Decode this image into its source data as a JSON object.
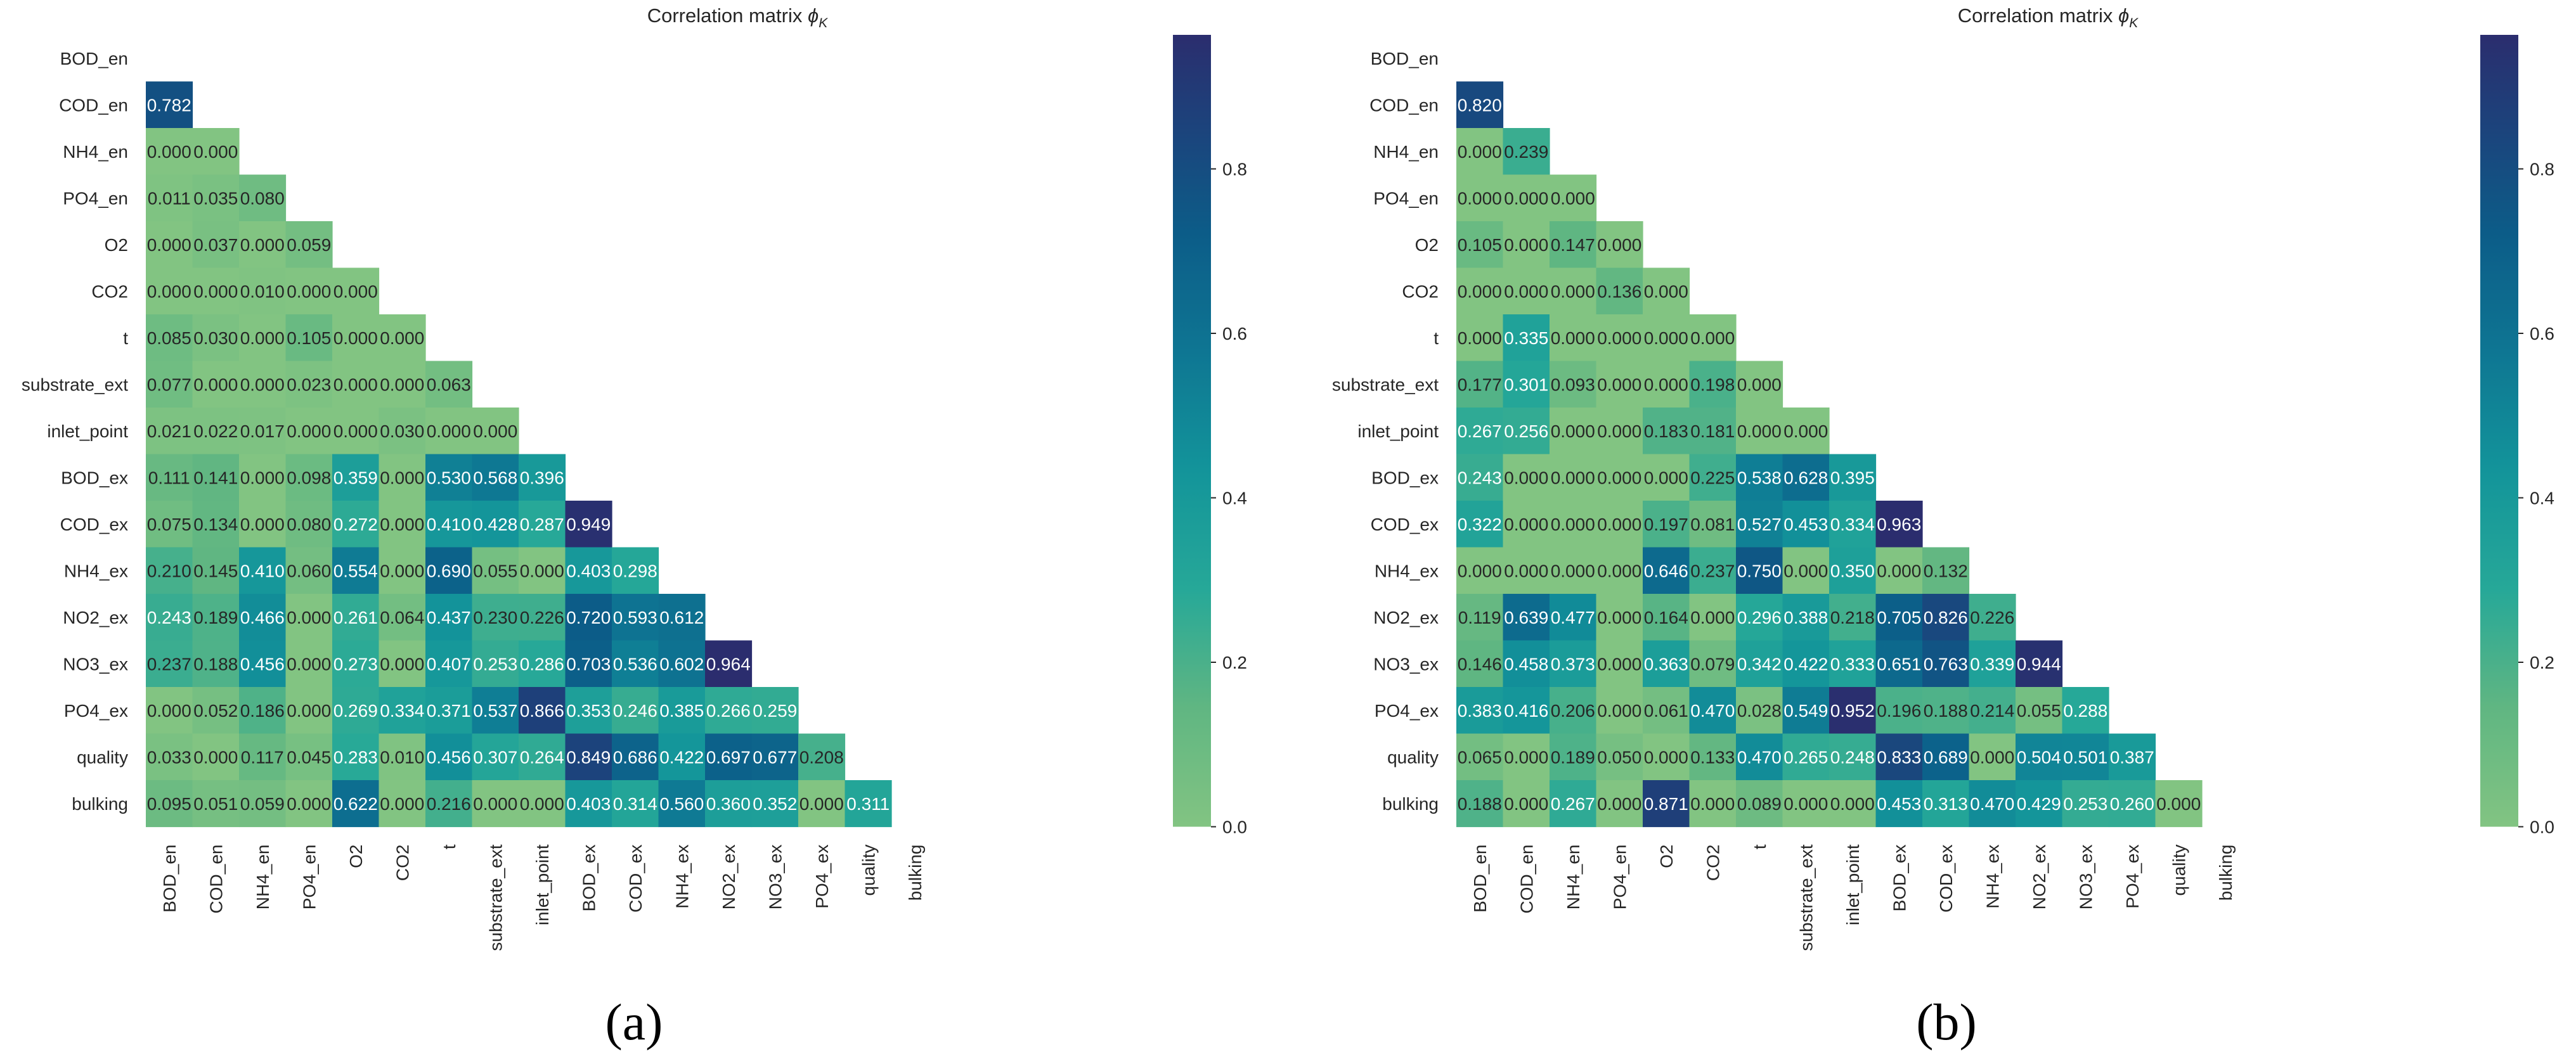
{
  "figure": {
    "panels": [
      {
        "label": "(a)"
      },
      {
        "label": "(b)"
      }
    ]
  },
  "chart_data": [
    {
      "type": "heatmap",
      "title": "Correlation matrix",
      "title_symbol": "ϕ",
      "title_subscript": "K",
      "mask": "lower-triangle",
      "variables": [
        "BOD_en",
        "COD_en",
        "NH4_en",
        "PO4_en",
        "O2",
        "CO2",
        "t",
        "substrate_ext",
        "inlet_point",
        "BOD_ex",
        "COD_ex",
        "NH4_ex",
        "NO2_ex",
        "NO3_ex",
        "PO4_ex",
        "quality",
        "bulking"
      ],
      "matrix": [
        [],
        [
          0.782
        ],
        [
          0.0,
          0.0
        ],
        [
          0.011,
          0.035,
          0.08
        ],
        [
          0.0,
          0.037,
          0.0,
          0.059
        ],
        [
          0.0,
          0.0,
          0.01,
          0.0,
          0.0
        ],
        [
          0.085,
          0.03,
          0.0,
          0.105,
          0.0,
          0.0
        ],
        [
          0.077,
          0.0,
          0.0,
          0.023,
          0.0,
          0.0,
          0.063
        ],
        [
          0.021,
          0.022,
          0.017,
          0.0,
          0.0,
          0.03,
          0.0,
          0.0
        ],
        [
          0.111,
          0.141,
          0.0,
          0.098,
          0.359,
          0.0,
          0.53,
          0.568,
          0.396
        ],
        [
          0.075,
          0.134,
          0.0,
          0.08,
          0.272,
          0.0,
          0.41,
          0.428,
          0.287,
          0.949
        ],
        [
          0.21,
          0.145,
          0.41,
          0.06,
          0.554,
          0.0,
          0.69,
          0.055,
          0.0,
          0.403,
          0.298
        ],
        [
          0.243,
          0.189,
          0.466,
          0.0,
          0.261,
          0.064,
          0.437,
          0.23,
          0.226,
          0.72,
          0.593,
          0.612
        ],
        [
          0.237,
          0.188,
          0.456,
          0.0,
          0.273,
          0.0,
          0.407,
          0.253,
          0.286,
          0.703,
          0.536,
          0.602,
          0.964
        ],
        [
          0.0,
          0.052,
          0.186,
          0.0,
          0.269,
          0.334,
          0.371,
          0.537,
          0.866,
          0.353,
          0.246,
          0.385,
          0.266,
          0.259
        ],
        [
          0.033,
          0.0,
          0.117,
          0.045,
          0.283,
          0.01,
          0.456,
          0.307,
          0.264,
          0.849,
          0.686,
          0.422,
          0.697,
          0.677,
          0.208
        ],
        [
          0.095,
          0.051,
          0.059,
          0.0,
          0.622,
          0.0,
          0.216,
          0.0,
          0.0,
          0.403,
          0.314,
          0.56,
          0.36,
          0.352,
          0.0,
          0.311
        ]
      ],
      "value_range": [
        0,
        0.963
      ],
      "colorbar": {
        "ticks": [
          "0.0",
          "0.2",
          "0.4",
          "0.6",
          "0.8"
        ],
        "tick_values": [
          0,
          0.2,
          0.4,
          0.6,
          0.8
        ],
        "colormap": "crest"
      }
    },
    {
      "type": "heatmap",
      "title": "Correlation matrix",
      "title_symbol": "ϕ",
      "title_subscript": "K",
      "mask": "lower-triangle",
      "variables": [
        "BOD_en",
        "COD_en",
        "NH4_en",
        "PO4_en",
        "O2",
        "CO2",
        "t",
        "substrate_ext",
        "inlet_point",
        "BOD_ex",
        "COD_ex",
        "NH4_ex",
        "NO2_ex",
        "NO3_ex",
        "PO4_ex",
        "quality",
        "bulking"
      ],
      "matrix": [
        [],
        [
          0.82
        ],
        [
          0.0,
          0.239
        ],
        [
          0.0,
          0.0,
          0.0
        ],
        [
          0.105,
          0.0,
          0.147,
          0.0
        ],
        [
          0.0,
          0.0,
          0.0,
          0.136,
          0.0
        ],
        [
          0.0,
          0.335,
          0.0,
          0.0,
          0.0,
          0.0
        ],
        [
          0.177,
          0.301,
          0.093,
          0.0,
          0.0,
          0.198,
          0.0
        ],
        [
          0.267,
          0.256,
          0.0,
          0.0,
          0.183,
          0.181,
          0.0,
          0.0
        ],
        [
          0.243,
          0.0,
          0.0,
          0.0,
          0.0,
          0.225,
          0.538,
          0.628,
          0.395
        ],
        [
          0.322,
          0.0,
          0.0,
          0.0,
          0.197,
          0.081,
          0.527,
          0.453,
          0.334,
          0.963
        ],
        [
          0.0,
          0.0,
          0.0,
          0.0,
          0.646,
          0.237,
          0.75,
          0.0,
          0.35,
          0.0,
          0.132
        ],
        [
          0.119,
          0.639,
          0.477,
          0.0,
          0.164,
          0.0,
          0.296,
          0.388,
          0.218,
          0.705,
          0.826,
          0.226
        ],
        [
          0.146,
          0.458,
          0.373,
          0.0,
          0.363,
          0.079,
          0.342,
          0.422,
          0.333,
          0.651,
          0.763,
          0.339,
          0.944
        ],
        [
          0.383,
          0.416,
          0.206,
          0.0,
          0.061,
          0.47,
          0.028,
          0.549,
          0.952,
          0.196,
          0.188,
          0.214,
          0.055,
          0.288
        ],
        [
          0.065,
          0.0,
          0.189,
          0.05,
          0.0,
          0.133,
          0.47,
          0.265,
          0.248,
          0.833,
          0.689,
          0.0,
          0.504,
          0.501,
          0.387
        ],
        [
          0.188,
          0.0,
          0.267,
          0.0,
          0.871,
          0.0,
          0.089,
          0.0,
          0.0,
          0.453,
          0.313,
          0.47,
          0.429,
          0.253,
          0.26,
          0.0
        ]
      ],
      "value_range": [
        0,
        0.963
      ],
      "colorbar": {
        "ticks": [
          "0.0",
          "0.2",
          "0.4",
          "0.6",
          "0.8"
        ],
        "tick_values": [
          0,
          0.2,
          0.4,
          0.6,
          0.8
        ],
        "colormap": "crest"
      }
    }
  ]
}
